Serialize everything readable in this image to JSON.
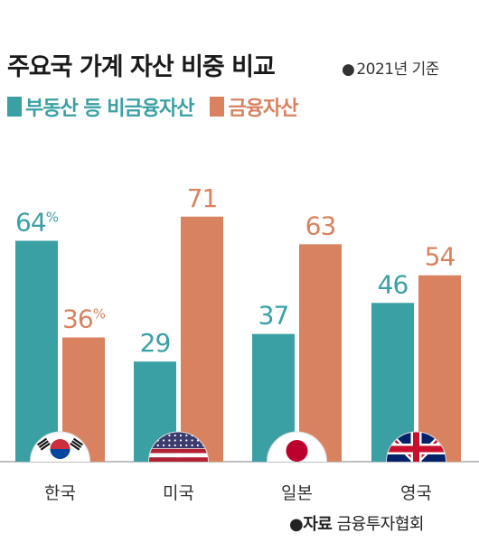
{
  "title": "주요국 가계 자산 비중 비교",
  "base_note": "2021년 기준",
  "source": {
    "label": "자료",
    "text": "금융투자협회"
  },
  "colors": {
    "non_financial": "#3aa0a4",
    "financial": "#d8825f",
    "baseline": "#999999"
  },
  "chart_data": {
    "type": "bar",
    "categories": [
      "한국",
      "미국",
      "일본",
      "영국"
    ],
    "flags": [
      "korea-flag-icon",
      "usa-flag-icon",
      "japan-flag-icon",
      "uk-flag-icon"
    ],
    "series": [
      {
        "name": "부동산 등 비금융자산",
        "values": [
          64,
          29,
          37,
          46
        ],
        "labels": [
          "64%",
          "29",
          "37",
          "46"
        ]
      },
      {
        "name": "금융자산",
        "values": [
          36,
          71,
          63,
          54
        ],
        "labels": [
          "36%",
          "71",
          "63",
          "54"
        ]
      }
    ],
    "ylim": [
      0,
      100
    ],
    "grid": false,
    "legend_position": "top-left"
  }
}
